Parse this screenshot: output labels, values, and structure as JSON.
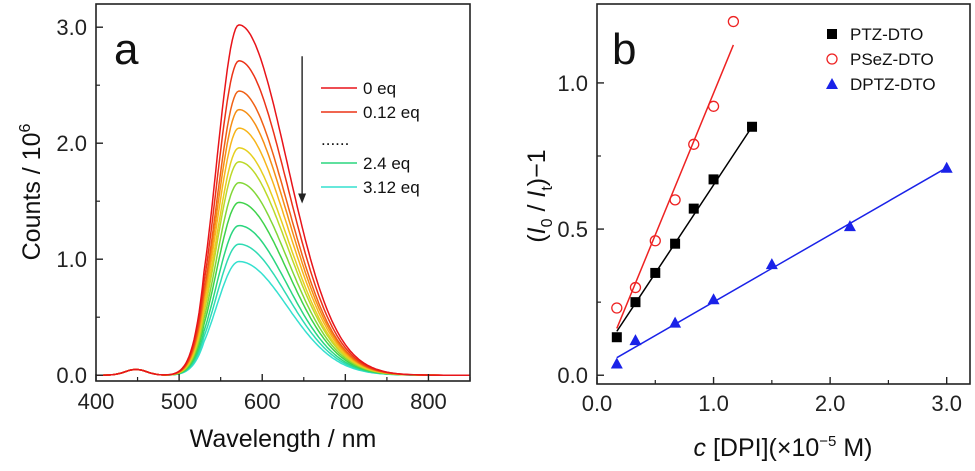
{
  "chart_data": [
    {
      "panel_label": "a",
      "type": "line",
      "xlabel": "Wavelength / nm",
      "ylabel_prefix": "Counts / 10",
      "ylabel_sup": "6",
      "xlim": [
        400,
        850
      ],
      "ylim": [
        -0.05,
        3.2
      ],
      "xticks": [
        400,
        500,
        600,
        700,
        800
      ],
      "yticks": [
        0.0,
        1.0,
        2.0,
        3.0
      ],
      "ytick_labels": [
        "0.0",
        "1.0",
        "2.0",
        "3.0"
      ],
      "baseline_bump": 0.05,
      "series_peaks": [
        3.02,
        2.71,
        2.45,
        2.29,
        2.13,
        1.96,
        1.84,
        1.66,
        1.49,
        1.29,
        1.13,
        0.98
      ],
      "series_colors": [
        "#e8141a",
        "#ec3317",
        "#f06015",
        "#f58e14",
        "#f7b51b",
        "#e6cf1f",
        "#bcd92a",
        "#83d737",
        "#3fd24b",
        "#2ad67f",
        "#2fdbb3",
        "#35e0cf"
      ],
      "arrow": {
        "x": 648,
        "y_top": 2.75,
        "y_bottom": 1.48
      },
      "legend": [
        {
          "label": "0 eq",
          "color": "#e8141a"
        },
        {
          "label": "0.12 eq",
          "color": "#ec3317"
        },
        {
          "label": "......",
          "color": ""
        },
        {
          "label": "2.4 eq",
          "color": "#2ad67f"
        },
        {
          "label": "3.12 eq",
          "color": "#35e0cf"
        }
      ]
    },
    {
      "panel_label": "b",
      "type": "scatter",
      "xlabel_italic": "c",
      "xlabel_rest": " [DPI](×10",
      "xlabel_sup": "−5",
      "xlabel_end": " M)",
      "ylabel": "(I0 / It)−1",
      "xlim": [
        0.0,
        3.2
      ],
      "ylim": [
        -0.03,
        1.27
      ],
      "xticks": [
        0.0,
        1.0,
        2.0,
        3.0
      ],
      "xtick_labels": [
        "0.0",
        "1.0",
        "2.0",
        "3.0"
      ],
      "yticks": [
        0.0,
        0.5,
        1.0
      ],
      "ytick_labels": [
        "0.0",
        "0.5",
        "1.0"
      ],
      "series": [
        {
          "name": "PTZ-DTO",
          "color": "#000000",
          "marker": "square",
          "x": [
            0.17,
            0.33,
            0.5,
            0.67,
            0.83,
            1.0,
            1.33
          ],
          "y": [
            0.13,
            0.25,
            0.35,
            0.45,
            0.57,
            0.67,
            0.85
          ],
          "fit": [
            [
              0.17,
              0.15
            ],
            [
              1.33,
              0.85
            ]
          ]
        },
        {
          "name": "PSeZ-DTO",
          "color": "#ee2222",
          "marker": "circle-open",
          "x": [
            0.17,
            0.33,
            0.5,
            0.67,
            0.83,
            1.0,
            1.17
          ],
          "y": [
            0.23,
            0.3,
            0.46,
            0.6,
            0.79,
            0.92,
            1.21
          ],
          "fit": [
            [
              0.17,
              0.16
            ],
            [
              1.17,
              1.13
            ]
          ]
        },
        {
          "name": "DPTZ-DTO",
          "color": "#1a22e8",
          "marker": "triangle",
          "x": [
            0.17,
            0.33,
            0.67,
            1.0,
            1.5,
            2.17,
            3.0
          ],
          "y": [
            0.04,
            0.12,
            0.18,
            0.26,
            0.38,
            0.51,
            0.71
          ],
          "fit": [
            [
              0.17,
              0.06
            ],
            [
              3.0,
              0.71
            ]
          ]
        }
      ]
    }
  ]
}
